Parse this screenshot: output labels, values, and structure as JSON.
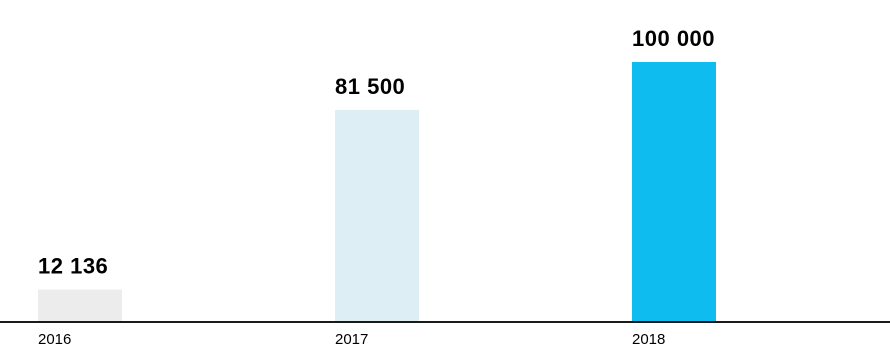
{
  "chart_data": {
    "type": "bar",
    "categories": [
      "2016",
      "2017",
      "2018"
    ],
    "values": [
      12136,
      81500,
      100000
    ],
    "value_labels": [
      "12 136",
      "81 500",
      "100 000"
    ],
    "bar_colors": [
      "#ececec",
      "#ddeef5",
      "#0ebcef"
    ],
    "axis_color": "#1a1a1a",
    "ylim": [
      0,
      100000
    ],
    "grid": false,
    "title": "",
    "xlabel": "",
    "ylabel": ""
  }
}
